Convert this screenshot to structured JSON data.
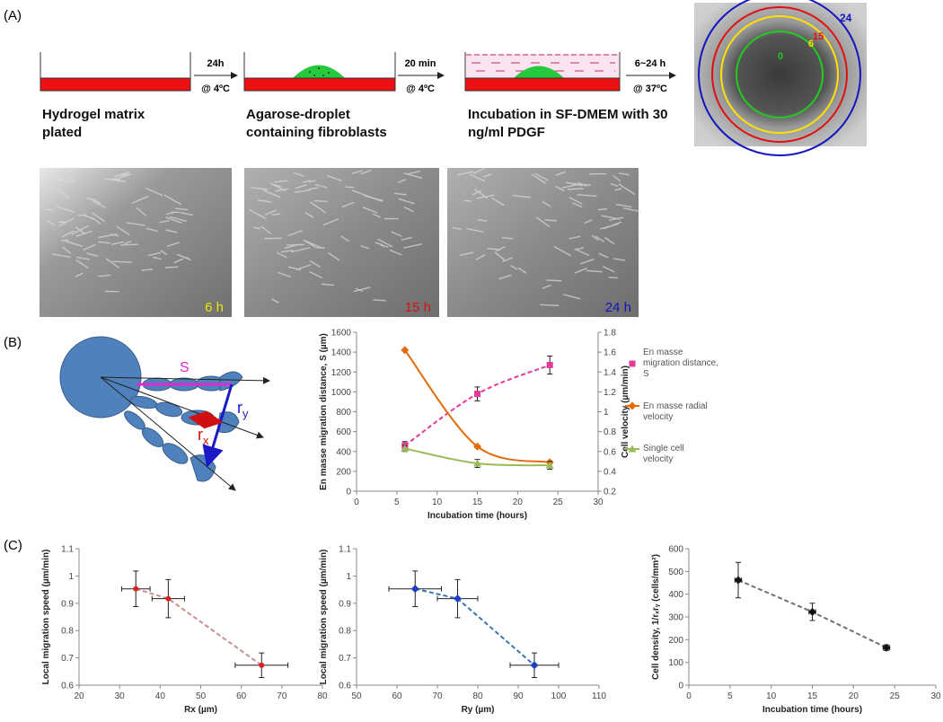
{
  "panel_labels": [
    "(A)",
    "(B)",
    "(C)"
  ],
  "schematic": {
    "steps": [
      "Hydrogel matrix plated",
      "Agarose-droplet containing fibroblasts",
      "Incubation in SF-DMEM with 30 ng/ml PDGF"
    ],
    "arrows": [
      {
        "time": "24h",
        "condition": "@ 4ºC"
      },
      {
        "time": "20 min",
        "condition": "@ 4ºC"
      },
      {
        "time": "6~24 h",
        "condition": "@ 37ºC"
      }
    ],
    "ring_labels": [
      "0",
      "6",
      "15",
      "24"
    ]
  },
  "micrographs": [
    "6 h",
    "15 h",
    "24 h"
  ],
  "migration_diagram": {
    "s_label": "S",
    "ry_label": "r",
    "ry_sub": "y",
    "rx_label": "r",
    "rx_sub": "x"
  },
  "chart_data": [
    {
      "type": "line",
      "x": [
        6,
        15,
        24
      ],
      "xlabel": "Incubation time (hours)",
      "ylabel": "En masse migration distance, S (µm)",
      "y2label": "Cell velocity (µm/min)",
      "xlim": [
        0,
        30
      ],
      "xticks": [
        0,
        5,
        10,
        15,
        20,
        25,
        30
      ],
      "ylim": [
        0,
        1600
      ],
      "yticks": [
        0,
        200,
        400,
        600,
        800,
        1000,
        1200,
        1400,
        1600
      ],
      "y2lim": [
        0.2,
        1.8
      ],
      "y2ticks": [
        0.2,
        0.4,
        0.6,
        0.8,
        1,
        1.2,
        1.4,
        1.6,
        1.8
      ],
      "legend": "right",
      "series": [
        {
          "name": "En masse migration distance, S",
          "color": "#e6399b",
          "marker": "square",
          "linestyle": "dashed",
          "values": [
            460,
            980,
            1270
          ],
          "yerr": [
            40,
            70,
            90
          ]
        },
        {
          "name": "En masse radial velocity",
          "color": "#e36c0a",
          "marker": "diamond",
          "linestyle": "solid",
          "axis": "y2",
          "values": [
            1.62,
            0.65,
            0.49
          ]
        },
        {
          "name": "Single cell velocity",
          "color": "#9bbb59",
          "marker": "triangle",
          "linestyle": "solid",
          "axis": "y2",
          "values": [
            0.63,
            0.48,
            0.46
          ],
          "yerr": [
            0.03,
            0.04,
            0.04
          ]
        }
      ]
    },
    {
      "type": "scatter",
      "x": [
        34,
        42,
        65
      ],
      "xerr": [
        3.5,
        4,
        6.5
      ],
      "values": [
        0.953,
        0.917,
        0.673
      ],
      "yerr": [
        0.065,
        0.07,
        0.045
      ],
      "color": "#e02020",
      "line_color": "#c89090",
      "marker": "circle",
      "linestyle": "dashed",
      "xlabel": "Rx (µm)",
      "ylabel": "Local migration speed (µm/min)",
      "xlim": [
        20,
        80
      ],
      "xticks": [
        20,
        30,
        40,
        50,
        60,
        70,
        80
      ],
      "ylim": [
        0.6,
        1.1
      ],
      "yticks": [
        0.6,
        0.7,
        0.8,
        0.9,
        1,
        1.1
      ]
    },
    {
      "type": "scatter",
      "x": [
        64.5,
        75,
        94
      ],
      "xerr": [
        6.5,
        5,
        6
      ],
      "values": [
        0.953,
        0.917,
        0.673
      ],
      "yerr": [
        0.065,
        0.07,
        0.045
      ],
      "color": "#1f3fbf",
      "line_color": "#3a74b4",
      "marker": "diamond",
      "linestyle": "dashed",
      "xlabel": "Ry (µm)",
      "ylabel": "Local migration speed (µm/min)",
      "xlim": [
        50,
        110
      ],
      "xticks": [
        50,
        60,
        70,
        80,
        90,
        100,
        110
      ],
      "ylim": [
        0.6,
        1.1
      ],
      "yticks": [
        0.6,
        0.7,
        0.8,
        0.9,
        1,
        1.1
      ]
    },
    {
      "type": "scatter",
      "x": [
        6,
        15,
        24
      ],
      "xerr": [
        0.4,
        0.4,
        0.4
      ],
      "values": [
        462,
        322,
        165
      ],
      "yerr": [
        78,
        38,
        12
      ],
      "color": "#111111",
      "line_color": "#707070",
      "marker": "diamond",
      "linestyle": "dashed",
      "xlabel": "Incubation time (hours)",
      "ylabel": "Cell density, 1/rₓrᵧ (cells/mm²)",
      "xlim": [
        0,
        30
      ],
      "xticks": [
        0,
        5,
        10,
        15,
        20,
        25,
        30
      ],
      "ylim": [
        0,
        600
      ],
      "yticks": [
        0,
        100,
        200,
        300,
        400,
        500,
        600
      ]
    }
  ]
}
